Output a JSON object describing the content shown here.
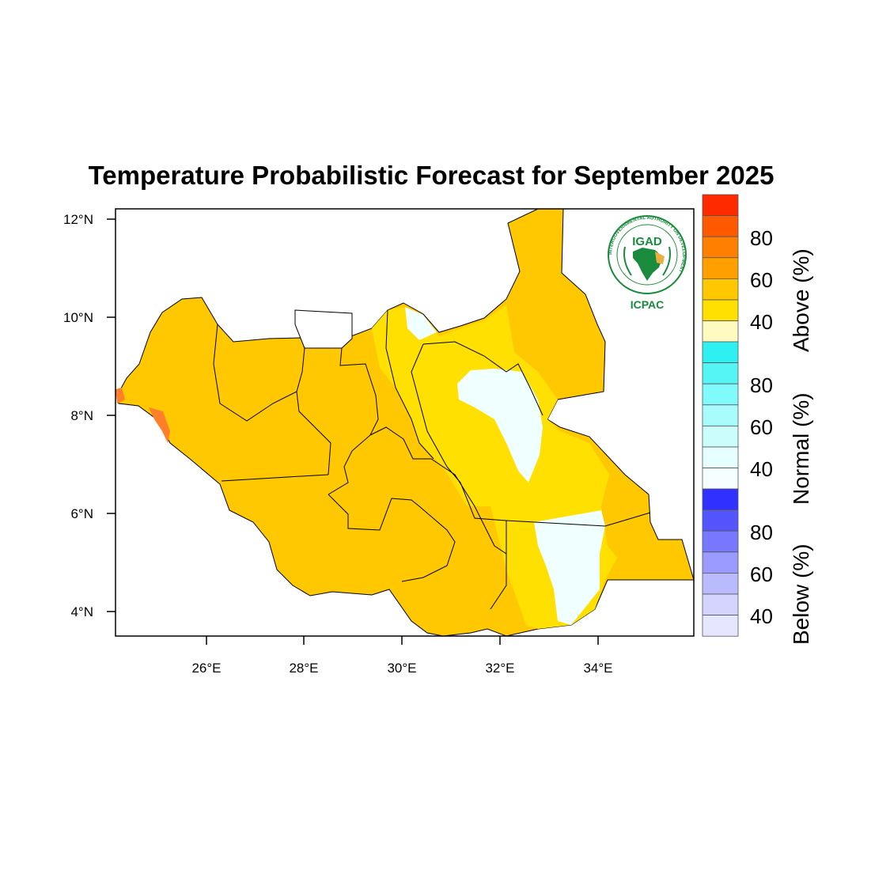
{
  "title": "Temperature Probabilistic Forecast for September 2025",
  "map": {
    "x_ticks": [
      "26°E",
      "28°E",
      "30°E",
      "32°E",
      "34°E"
    ],
    "y_ticks": [
      "12°N",
      "10°N",
      "8°N",
      "6°N",
      "4°N"
    ],
    "colors": {
      "above_40_50": "#ffd700",
      "above_50_60": "#ffc800",
      "above_70": "#ff7f2a",
      "normal_40": "#f0ffff",
      "outside": "#ffffff"
    }
  },
  "colorbar": {
    "above": {
      "title": "Above (%)",
      "labels": [
        "80",
        "60",
        "40"
      ],
      "colors": [
        "#ff2a00",
        "#ff5a00",
        "#ff7f00",
        "#ff9f00",
        "#ffc800",
        "#ffe000",
        "#fffac0"
      ]
    },
    "normal": {
      "title": "Normal (%)",
      "labels": [
        "80",
        "60",
        "40"
      ],
      "colors": [
        "#2ef0f0",
        "#55f5f5",
        "#80fafa",
        "#a8fcfc",
        "#ccfdfd",
        "#e6ffff",
        "#f5ffff"
      ]
    },
    "below": {
      "title": "Below (%)",
      "labels": [
        "80",
        "60",
        "40"
      ],
      "colors": [
        "#3030ff",
        "#5555ff",
        "#7878ff",
        "#9a9aff",
        "#babaff",
        "#d4d4ff",
        "#e6e6ff"
      ]
    }
  },
  "logo": {
    "name": "IGAD",
    "subname": "ICPAC",
    "ring_text": "INTERGOVERNMENTAL AUTHORITY ON DEVELOPMENT",
    "color": "#1a8a3c"
  }
}
